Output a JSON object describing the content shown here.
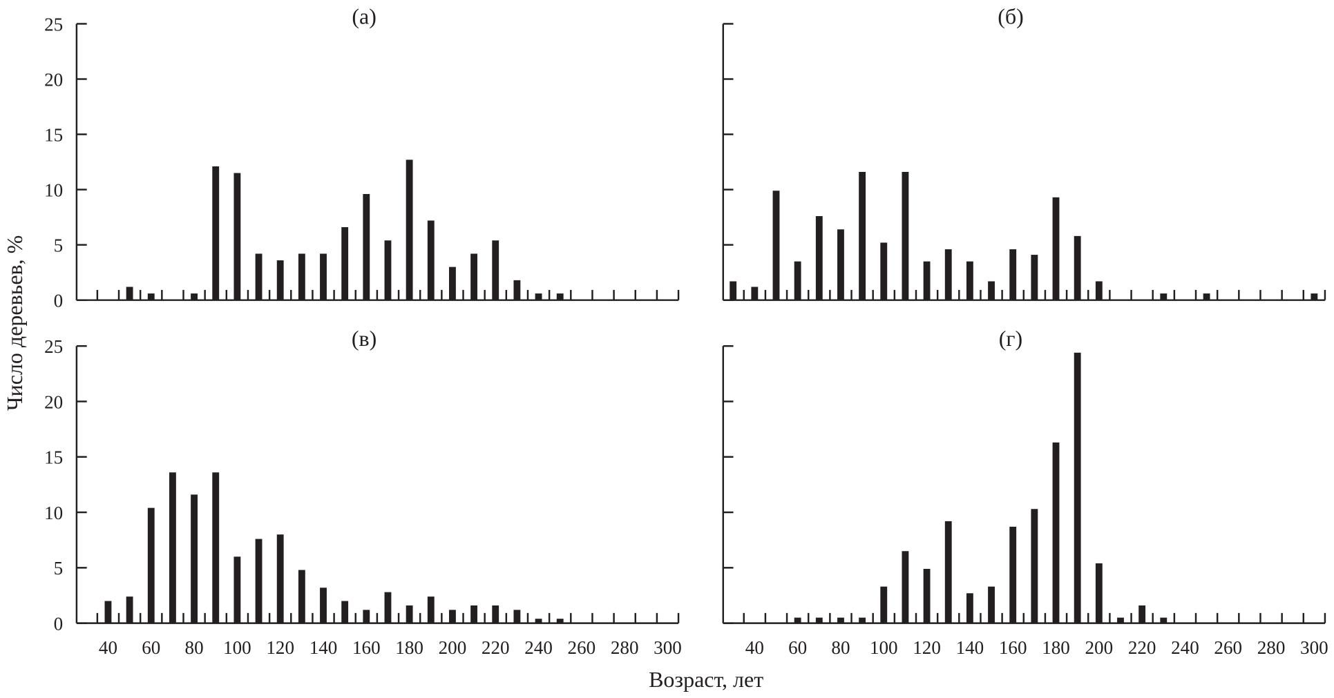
{
  "chart_data": {
    "type": "bar",
    "xlabel": "Возраст, лет",
    "ylabel": "Число деревьев, %",
    "ylim": [
      0,
      25
    ],
    "yticks": [
      "0",
      "5",
      "10",
      "15",
      "20",
      "25"
    ],
    "xticks": [
      "40",
      "60",
      "80",
      "100",
      "120",
      "140",
      "160",
      "180",
      "200",
      "220",
      "240",
      "260",
      "280",
      "300"
    ],
    "xlim": [
      25,
      305
    ],
    "bar_color": "#231f20",
    "panels": [
      {
        "title": "(а)",
        "bars": [
          [
            50,
            1.2
          ],
          [
            60,
            0.6
          ],
          [
            80,
            0.6
          ],
          [
            90,
            12.1
          ],
          [
            100,
            11.5
          ],
          [
            110,
            4.2
          ],
          [
            120,
            3.6
          ],
          [
            130,
            4.2
          ],
          [
            140,
            4.2
          ],
          [
            150,
            6.6
          ],
          [
            160,
            9.6
          ],
          [
            170,
            5.4
          ],
          [
            180,
            12.7
          ],
          [
            190,
            7.2
          ],
          [
            200,
            3.0
          ],
          [
            210,
            4.2
          ],
          [
            220,
            5.4
          ],
          [
            230,
            1.8
          ],
          [
            240,
            0.6
          ],
          [
            250,
            0.6
          ]
        ]
      },
      {
        "title": "(б)",
        "bars": [
          [
            30,
            1.7
          ],
          [
            40,
            1.2
          ],
          [
            50,
            9.9
          ],
          [
            60,
            3.5
          ],
          [
            70,
            7.6
          ],
          [
            80,
            6.4
          ],
          [
            90,
            11.6
          ],
          [
            100,
            5.2
          ],
          [
            110,
            11.6
          ],
          [
            120,
            3.5
          ],
          [
            130,
            4.6
          ],
          [
            140,
            3.5
          ],
          [
            150,
            1.7
          ],
          [
            160,
            4.6
          ],
          [
            170,
            4.1
          ],
          [
            180,
            9.3
          ],
          [
            190,
            5.8
          ],
          [
            200,
            1.7
          ],
          [
            230,
            0.6
          ],
          [
            250,
            0.6
          ],
          [
            300,
            0.6
          ]
        ]
      },
      {
        "title": "(в)",
        "bars": [
          [
            40,
            2.0
          ],
          [
            50,
            2.4
          ],
          [
            60,
            10.4
          ],
          [
            70,
            13.6
          ],
          [
            80,
            11.6
          ],
          [
            90,
            13.6
          ],
          [
            100,
            6.0
          ],
          [
            110,
            7.6
          ],
          [
            120,
            8.0
          ],
          [
            130,
            4.8
          ],
          [
            140,
            3.2
          ],
          [
            150,
            2.0
          ],
          [
            160,
            1.2
          ],
          [
            170,
            2.8
          ],
          [
            180,
            1.6
          ],
          [
            190,
            2.4
          ],
          [
            200,
            1.2
          ],
          [
            210,
            1.6
          ],
          [
            220,
            1.6
          ],
          [
            230,
            1.2
          ],
          [
            240,
            0.4
          ],
          [
            250,
            0.4
          ]
        ]
      },
      {
        "title": "(г)",
        "bars": [
          [
            60,
            0.5
          ],
          [
            70,
            0.5
          ],
          [
            80,
            0.5
          ],
          [
            90,
            0.5
          ],
          [
            100,
            3.3
          ],
          [
            110,
            6.5
          ],
          [
            120,
            4.9
          ],
          [
            130,
            9.2
          ],
          [
            140,
            2.7
          ],
          [
            150,
            3.3
          ],
          [
            160,
            8.7
          ],
          [
            170,
            10.3
          ],
          [
            180,
            16.3
          ],
          [
            190,
            24.4
          ],
          [
            200,
            5.4
          ],
          [
            210,
            0.5
          ],
          [
            220,
            1.6
          ],
          [
            230,
            0.5
          ]
        ]
      }
    ]
  }
}
